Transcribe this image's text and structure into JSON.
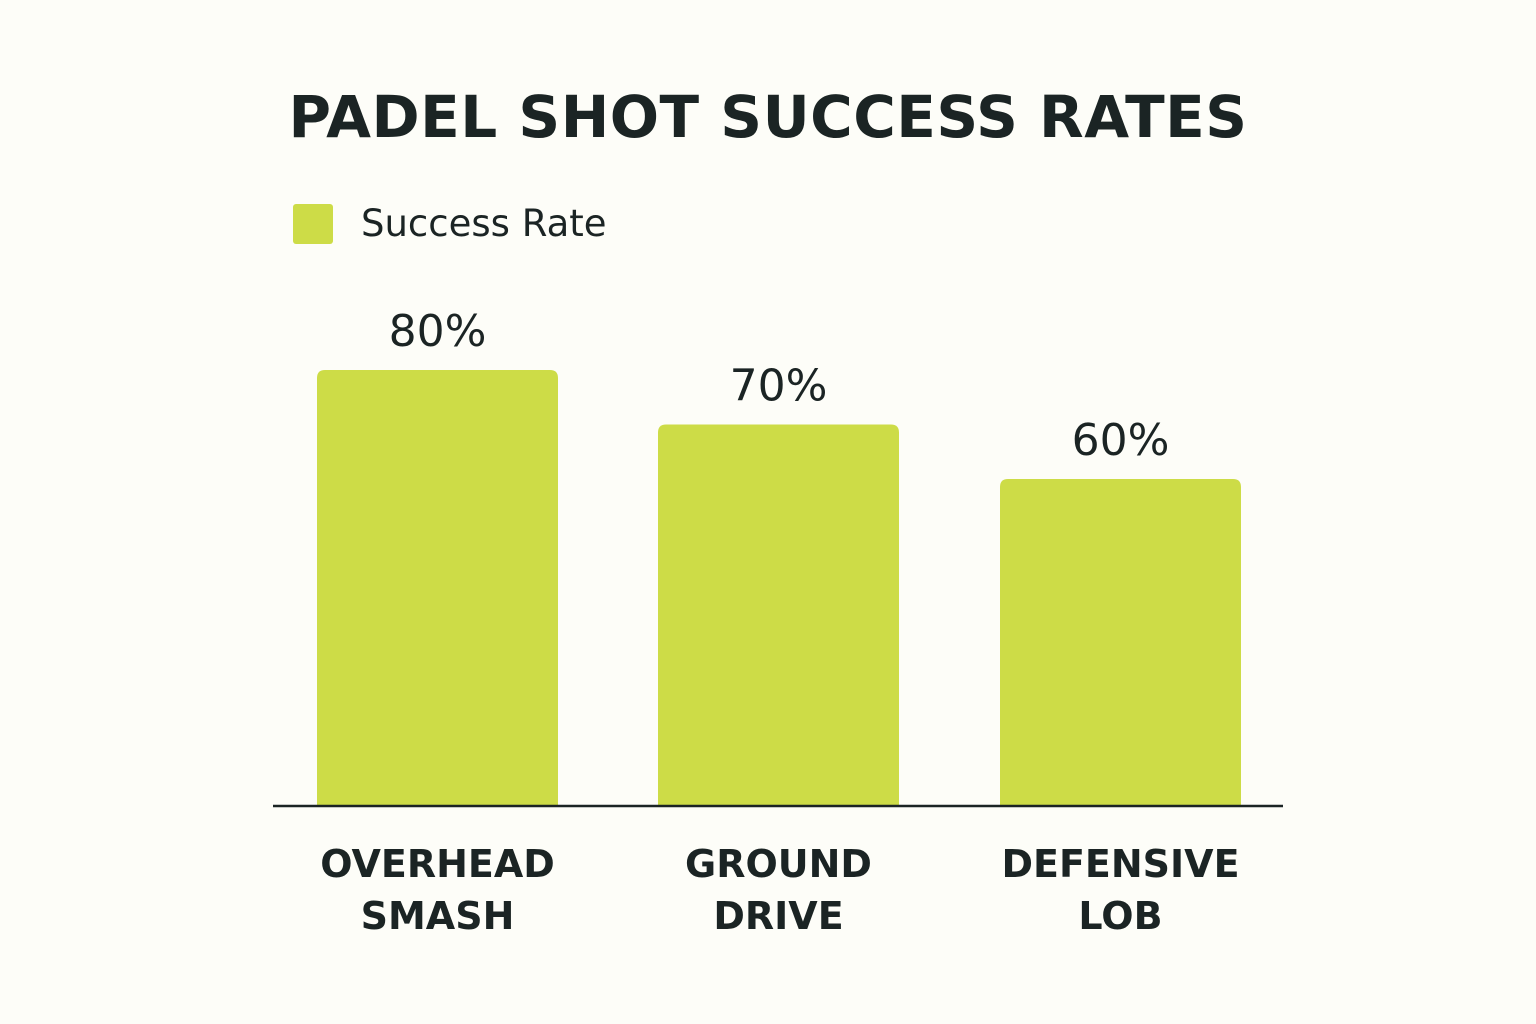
{
  "chart_data": {
    "type": "bar",
    "title": "PADEL SHOT SUCCESS RATES",
    "categories": [
      [
        "OVERHEAD",
        "SMASH"
      ],
      [
        "GROUND",
        "DRIVE"
      ],
      [
        "DEFENSIVE",
        "LOB"
      ]
    ],
    "series": [
      {
        "name": "Success Rate",
        "values": [
          80,
          70,
          60
        ],
        "value_labels": [
          "80%",
          "70%",
          "60%"
        ],
        "color": "#cddc47"
      }
    ],
    "ylim": [
      0,
      100
    ],
    "grid": false,
    "legend": "top-left"
  },
  "colors": {
    "background": "#fdfdf8",
    "text": "#1b2424",
    "bar": "#cddc47",
    "axis": "#1b2424"
  }
}
